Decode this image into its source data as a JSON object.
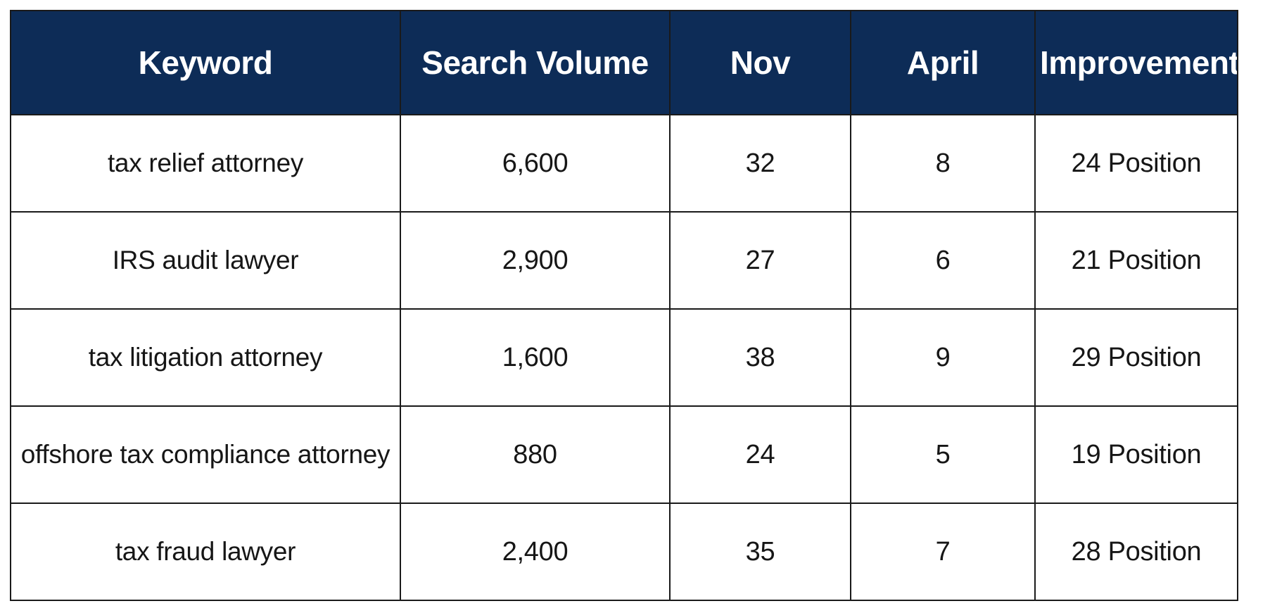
{
  "colors": {
    "header_background": "#0d2c57",
    "header_text": "#ffffff",
    "cell_background": "#ffffff",
    "cell_text": "#161616",
    "border": "#1a1a1a"
  },
  "table": {
    "headers": [
      "Keyword",
      "Search Volume",
      "Nov",
      "April",
      "Improvement"
    ],
    "rows": [
      [
        "tax relief attorney",
        "6,600",
        "32",
        "8",
        "24 Position"
      ],
      [
        "IRS audit lawyer",
        "2,900",
        "27",
        "6",
        "21 Position"
      ],
      [
        "tax litigation attorney",
        "1,600",
        "38",
        "9",
        "29 Position"
      ],
      [
        "offshore tax compliance attorney",
        "880",
        "24",
        "5",
        "19 Position"
      ],
      [
        "tax fraud lawyer",
        "2,400",
        "35",
        "7",
        "28 Position"
      ]
    ]
  }
}
